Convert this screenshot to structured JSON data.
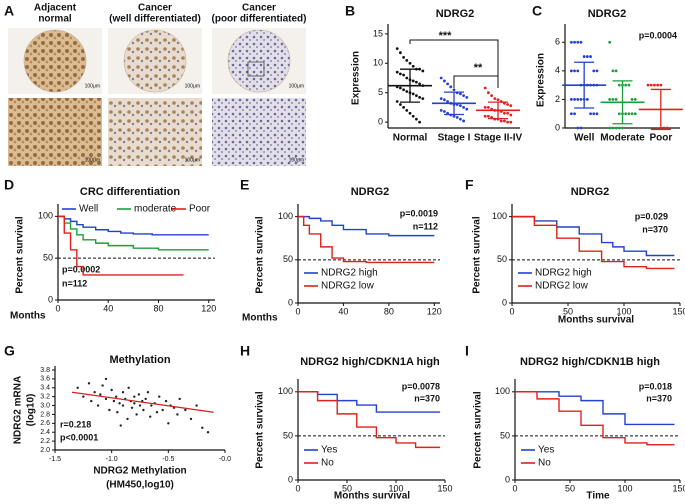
{
  "figure_a": {
    "panel": "A",
    "columns": [
      {
        "caption": [
          "Adjacent",
          "normal"
        ],
        "scale_bars": [
          "100μm",
          "100μm"
        ]
      },
      {
        "caption": [
          "Cancer",
          "(well differentiated)"
        ],
        "scale_bars": [
          "100μm",
          "100μm"
        ]
      },
      {
        "caption": [
          "Cancer",
          "(poor differentiated)"
        ],
        "scale_bars": [
          "100μm",
          "100μm"
        ]
      }
    ]
  },
  "chart_data": [
    {
      "panel": "B",
      "type": "strip",
      "title": "NDRG2",
      "ylabel": "Expression",
      "ylim": [
        -1,
        16
      ],
      "yticks": [
        0,
        5,
        10,
        15
      ],
      "annotations": [
        "***",
        "**"
      ],
      "groups": [
        {
          "name": "Normal",
          "color": "#111111",
          "mean": 6.2,
          "error": 2.8,
          "values": [
            12.5,
            11.8,
            11,
            10.5,
            10,
            9.5,
            9,
            9,
            8.7,
            8.5,
            8.2,
            8,
            7.5,
            7.2,
            7,
            6.8,
            6.5,
            6.2,
            6,
            5.8,
            5.5,
            5.2,
            5,
            4.8,
            4.5,
            4.2,
            4,
            3.5,
            3,
            2.5,
            2,
            1.5,
            1,
            0.5,
            0
          ]
        },
        {
          "name": "Stage I",
          "color": "#2440d0",
          "mean": 3.2,
          "error": 1.9,
          "values": [
            7.5,
            7,
            6.5,
            6,
            5.5,
            5,
            4.8,
            4.5,
            4.2,
            4,
            3.8,
            3.5,
            3.2,
            3,
            3,
            2.8,
            2.5,
            2.2,
            2,
            1.8,
            1.5,
            1.2,
            1,
            0.8,
            0.5,
            0.2
          ]
        },
        {
          "name": "Stage II-IV",
          "color": "#e0201b",
          "mean": 2,
          "error": 1.4,
          "values": [
            5.8,
            5,
            4.5,
            4,
            3.8,
            3.5,
            3.2,
            3,
            2.8,
            2.5,
            2.5,
            2.2,
            2,
            2,
            1.8,
            1.5,
            1.5,
            1.2,
            1,
            1,
            0.8,
            0.5,
            0.5,
            0.2,
            0.2,
            0,
            0
          ]
        }
      ]
    },
    {
      "panel": "C",
      "type": "strip",
      "title": "NDRG2",
      "ylabel": "Expression",
      "ylim": [
        0,
        7
      ],
      "yticks": [
        0,
        2,
        4,
        6
      ],
      "annotations": [
        "p=0.0004"
      ],
      "groups": [
        {
          "name": "Well",
          "color": "#2440d0",
          "mean": 3,
          "error": 1.6,
          "values": [
            6,
            6,
            6,
            6,
            5,
            5,
            5,
            4,
            4,
            4,
            4,
            4,
            3,
            3,
            3,
            3,
            3,
            3,
            2,
            2,
            2,
            2,
            2,
            2,
            1,
            1,
            1,
            1,
            1,
            0,
            0
          ]
        },
        {
          "name": "Moderate",
          "color": "#1a9e3a",
          "mean": 1.8,
          "error": 1.5,
          "values": [
            6,
            4,
            4,
            3,
            3,
            3,
            3,
            2,
            2,
            2,
            2,
            2,
            1,
            1,
            1,
            1,
            1,
            1,
            0,
            0,
            0,
            0,
            0
          ]
        },
        {
          "name": "Poor",
          "color": "#e0201b",
          "mean": 1.3,
          "error": 1.4,
          "values": [
            3,
            3,
            3,
            3,
            3,
            0,
            0
          ]
        }
      ]
    },
    {
      "panel": "D",
      "type": "step",
      "title": "CRC differentiation",
      "ylabel": "Percent survival",
      "xlabel": "Months",
      "xlim": [
        0,
        125
      ],
      "xticks": [
        0,
        40,
        80,
        120
      ],
      "ylim": [
        0,
        110
      ],
      "yticks": [
        0,
        50,
        100
      ],
      "reference_line": 50,
      "annotations": [
        "p=0.0002",
        "n=112"
      ],
      "series": [
        {
          "name": "Well",
          "color": "#2440d0",
          "x": [
            0,
            5,
            10,
            15,
            20,
            30,
            40,
            50,
            60,
            75,
            120
          ],
          "values": [
            100,
            97,
            94,
            90,
            87,
            84,
            82,
            80,
            79,
            78,
            78
          ]
        },
        {
          "name": "moderate",
          "color": "#1a9e3a",
          "x": [
            0,
            5,
            10,
            15,
            20,
            30,
            40,
            60,
            80,
            120
          ],
          "values": [
            100,
            92,
            85,
            78,
            72,
            68,
            65,
            62,
            60,
            60
          ]
        },
        {
          "name": "Poor",
          "color": "#e0201b",
          "x": [
            0,
            5,
            10,
            15,
            20,
            100
          ],
          "values": [
            100,
            80,
            60,
            40,
            30,
            30
          ]
        }
      ]
    },
    {
      "panel": "E",
      "type": "step",
      "title": "NDRG2",
      "ylabel": "Percent survival",
      "xlabel": "Months",
      "xlim": [
        0,
        125
      ],
      "xticks": [
        0,
        40,
        80,
        120
      ],
      "ylim": [
        0,
        110
      ],
      "yticks": [
        0,
        50,
        100
      ],
      "reference_line": 50,
      "annotations": [
        "p=0.0019",
        "n=112"
      ],
      "series": [
        {
          "name": "NDRG2 high",
          "color": "#2440d0",
          "x": [
            0,
            10,
            20,
            30,
            40,
            60,
            80,
            120
          ],
          "values": [
            100,
            98,
            95,
            90,
            85,
            80,
            78,
            78
          ]
        },
        {
          "name": "NDRG2 low",
          "color": "#e0201b",
          "x": [
            0,
            5,
            10,
            20,
            30,
            40,
            60,
            120
          ],
          "values": [
            100,
            90,
            80,
            65,
            52,
            48,
            47,
            47
          ]
        }
      ]
    },
    {
      "panel": "F",
      "type": "step",
      "title": "NDRG2",
      "ylabel": "Percent survival",
      "xlabel": "Months survival",
      "xlim": [
        0,
        150
      ],
      "xticks": [
        0,
        50,
        100,
        150
      ],
      "ylim": [
        0,
        110
      ],
      "yticks": [
        0,
        50,
        100
      ],
      "reference_line": 50,
      "annotations": [
        "p=0.029",
        "n=370"
      ],
      "series": [
        {
          "name": "NDRG2 high",
          "color": "#2440d0",
          "x": [
            0,
            20,
            40,
            60,
            80,
            90,
            100,
            120,
            145
          ],
          "values": [
            100,
            95,
            88,
            80,
            70,
            65,
            60,
            55,
            55
          ]
        },
        {
          "name": "NDRG2 low",
          "color": "#e0201b",
          "x": [
            0,
            20,
            40,
            60,
            80,
            100,
            120,
            145
          ],
          "values": [
            100,
            90,
            75,
            60,
            48,
            42,
            40,
            40
          ]
        }
      ]
    },
    {
      "panel": "G",
      "type": "scatter",
      "title": "Methylation",
      "ylabel": [
        "NDRG2 mRNA",
        "(log10)"
      ],
      "xlabel": [
        "NDRG2 Methylation",
        "(HM450,log10)"
      ],
      "xlim": [
        -1.5,
        0
      ],
      "xticks": [
        -1.5,
        {
          "value": -1,
          "label": "-1.0"
        },
        -0.5,
        {
          "value": 0,
          "label": "-0.0"
        }
      ],
      "ylim": [
        2,
        3.8
      ],
      "yticks": [
        {
          "value": 2,
          "label": "2.0"
        },
        2.2,
        2.4,
        2.6,
        2.8,
        {
          "value": 3,
          "label": "3.0"
        },
        3.2,
        3.4,
        3.6,
        3.8
      ],
      "annotations": [
        "r=0.218",
        "p<0.0001"
      ],
      "color": "#222222",
      "fit_color": "#d42020",
      "fit_line": {
        "x": [
          -1.35,
          -0.1
        ],
        "values": [
          3.3,
          2.85
        ]
      },
      "x": [
        -1.3,
        -1.25,
        -1.2,
        -1.18,
        -1.15,
        -1.12,
        -1.1,
        -1.08,
        -1.05,
        -1.02,
        -1.0,
        -0.98,
        -0.96,
        -0.95,
        -0.93,
        -0.9,
        -0.9,
        -0.88,
        -0.86,
        -0.85,
        -0.83,
        -0.82,
        -0.8,
        -0.8,
        -0.78,
        -0.76,
        -0.75,
        -0.73,
        -0.72,
        -0.7,
        -0.68,
        -0.66,
        -0.65,
        -0.62,
        -0.6,
        -0.58,
        -0.55,
        -0.52,
        -0.5,
        -0.48,
        -0.45,
        -0.42,
        -0.4,
        -0.35,
        -0.3,
        -0.25,
        -0.2,
        -0.15,
        -1.05,
        -0.92
      ],
      "values": [
        3.4,
        3.2,
        3.5,
        3.1,
        3.3,
        3.0,
        3.25,
        3.45,
        3.15,
        2.9,
        3.35,
        3.1,
        3.2,
        2.85,
        3.05,
        3.3,
        3.0,
        3.15,
        2.7,
        3.4,
        3.1,
        2.95,
        3.2,
        3.05,
        2.8,
        3.25,
        3.0,
        3.1,
        2.9,
        3.15,
        3.3,
        2.75,
        3.0,
        3.05,
        2.85,
        3.2,
        2.9,
        3.1,
        2.6,
        3.0,
        2.95,
        2.8,
        3.15,
        2.9,
        2.7,
        3.0,
        2.5,
        2.4,
        3.6,
        2.55
      ]
    },
    {
      "panel": "H",
      "type": "step",
      "title": "NDRG2 high/CDKN1A high",
      "ylabel": "Percent survival",
      "xlabel": "Months survival",
      "xlim": [
        0,
        150
      ],
      "xticks": [
        0,
        50,
        100,
        150
      ],
      "ylim": [
        0,
        110
      ],
      "yticks": [
        0,
        50,
        100
      ],
      "reference_line": 50,
      "annotations": [
        "p=0.0078",
        "n=370"
      ],
      "series": [
        {
          "name": "Yes",
          "color": "#2440d0",
          "x": [
            0,
            20,
            40,
            60,
            80,
            100,
            145
          ],
          "values": [
            100,
            97,
            90,
            85,
            77,
            77,
            77
          ]
        },
        {
          "name": "No",
          "color": "#e0201b",
          "x": [
            0,
            20,
            40,
            60,
            80,
            100,
            120,
            145
          ],
          "values": [
            100,
            90,
            75,
            60,
            48,
            42,
            37,
            37
          ]
        }
      ]
    },
    {
      "panel": "I",
      "type": "step",
      "title": "NDRG2 high/CDKN1B high",
      "ylabel": "Percent survival",
      "xlabel": "Time",
      "xlim": [
        0,
        150
      ],
      "xticks": [
        0,
        50,
        100,
        150
      ],
      "ylim": [
        0,
        110
      ],
      "yticks": [
        0,
        50,
        100
      ],
      "reference_line": 50,
      "annotations": [
        "p=0.018",
        "n=370"
      ],
      "series": [
        {
          "name": "Yes",
          "color": "#2440d0",
          "x": [
            0,
            20,
            40,
            60,
            80,
            100,
            145
          ],
          "values": [
            100,
            100,
            95,
            90,
            75,
            63,
            63
          ]
        },
        {
          "name": "No",
          "color": "#e0201b",
          "x": [
            0,
            20,
            40,
            60,
            80,
            100,
            120,
            145
          ],
          "values": [
            100,
            92,
            78,
            62,
            48,
            42,
            40,
            40
          ]
        }
      ]
    }
  ]
}
